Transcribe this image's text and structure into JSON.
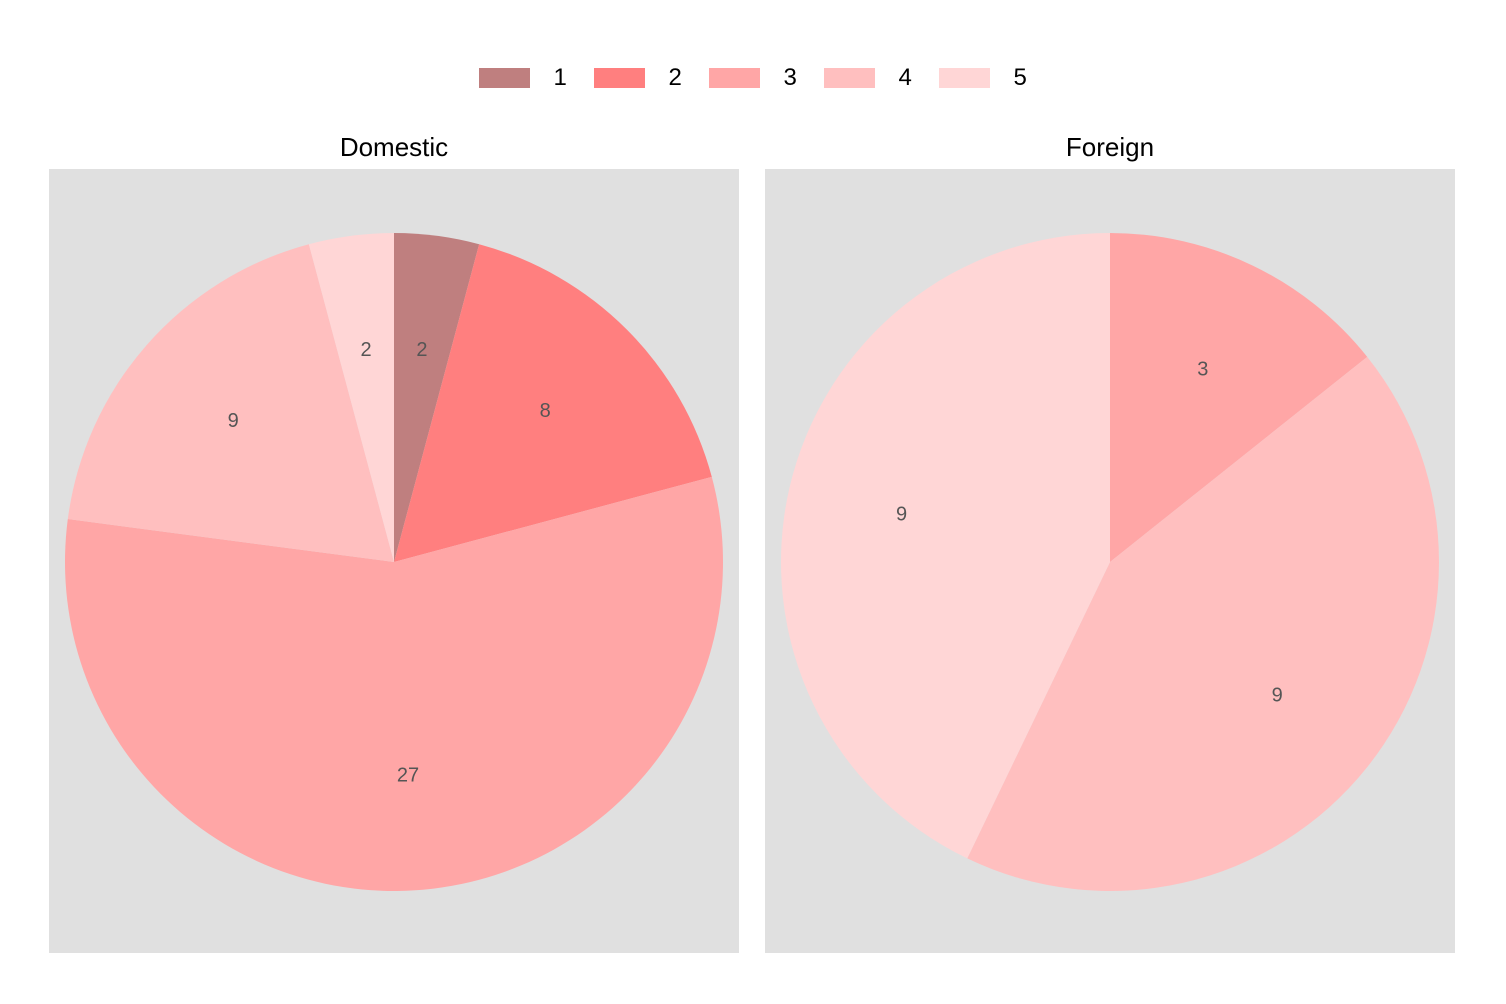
{
  "legend": {
    "items": [
      {
        "label": "1",
        "color": "#bf7f7f"
      },
      {
        "label": "2",
        "color": "#ff7f7f"
      },
      {
        "label": "3",
        "color": "#ffa6a6"
      },
      {
        "label": "4",
        "color": "#ffbfbf"
      },
      {
        "label": "5",
        "color": "#ffd6d6"
      }
    ]
  },
  "chart_data": [
    {
      "type": "pie",
      "title": "Domestic",
      "categories": [
        "1",
        "2",
        "3",
        "4",
        "5"
      ],
      "values": [
        2,
        8,
        27,
        9,
        2
      ],
      "labels": [
        "2",
        "8",
        "27",
        "9",
        "2"
      ],
      "colors": [
        "#bf7f7f",
        "#ff7f7f",
        "#ffa6a6",
        "#ffbfbf",
        "#ffd6d6"
      ],
      "start_angle": "12 o'clock",
      "direction": "clockwise",
      "legend_position": "top"
    },
    {
      "type": "pie",
      "title": "Foreign",
      "categories": [
        "3",
        "4",
        "5"
      ],
      "values": [
        3,
        9,
        9
      ],
      "labels": [
        "3",
        "9",
        "9"
      ],
      "colors": [
        "#ffa6a6",
        "#ffbfbf",
        "#ffd6d6"
      ],
      "start_angle": "12 o'clock",
      "direction": "clockwise",
      "legend_position": "top"
    }
  ]
}
